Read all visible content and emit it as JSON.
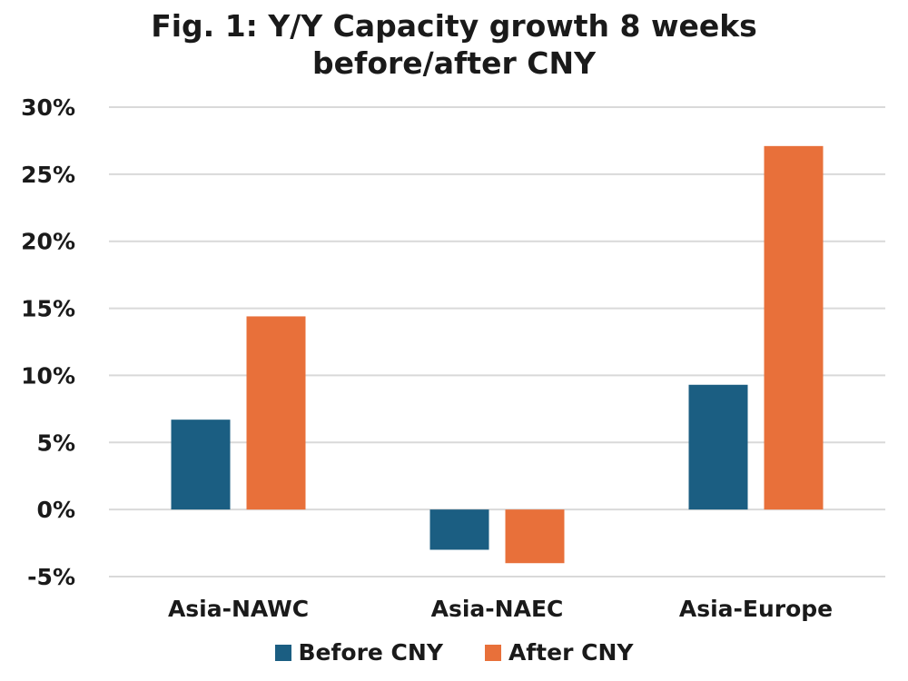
{
  "chart_data": {
    "type": "bar",
    "title_lines": [
      "Fig. 1: Y/Y Capacity growth 8 weeks",
      "before/after CNY"
    ],
    "categories": [
      "Asia-NAWC",
      "Asia-NAEC",
      "Asia-Europe"
    ],
    "series": [
      {
        "name": "Before CNY",
        "color": "#1b5e82",
        "values": [
          6.7,
          -3.0,
          9.3
        ]
      },
      {
        "name": "After CNY",
        "color": "#e8703a",
        "values": [
          14.4,
          -4.0,
          27.1
        ]
      }
    ],
    "y_ticks": [
      30,
      25,
      20,
      15,
      10,
      5,
      0,
      -5
    ],
    "y_tick_labels": [
      "30%",
      "25%",
      "20%",
      "15%",
      "10%",
      "5%",
      "0%",
      "-5%"
    ],
    "ylim": [
      -5,
      30
    ],
    "xlabel": "",
    "ylabel": "",
    "grid": true,
    "legend_position": "bottom"
  }
}
